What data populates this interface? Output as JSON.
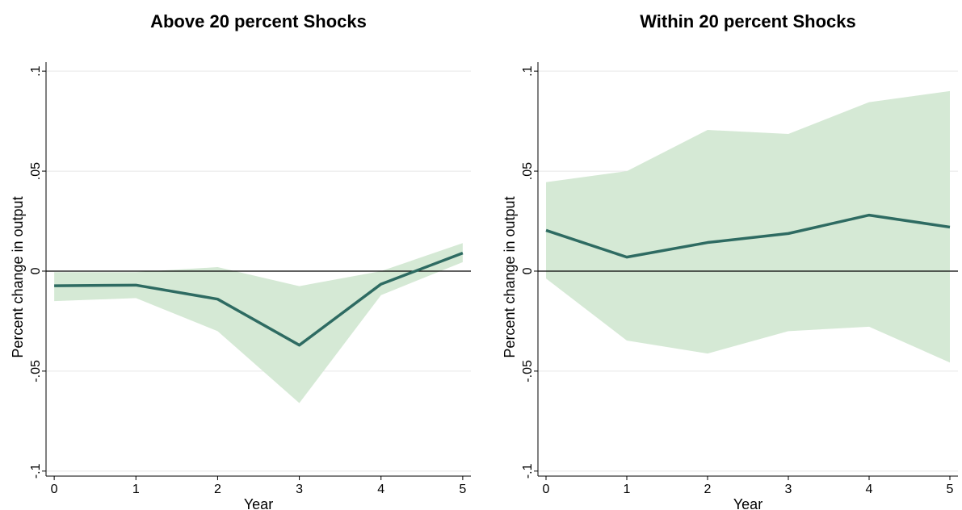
{
  "chart_data": [
    {
      "type": "line",
      "title": "Above 20 percent Shocks",
      "xlabel": "Year",
      "ylabel": "Percent change in output",
      "x": [
        0,
        1,
        2,
        3,
        4,
        5
      ],
      "values": [
        -0.0073,
        -0.007,
        -0.014,
        -0.037,
        -0.0065,
        0.009
      ],
      "upper": [
        -0.0005,
        -0.0005,
        0.002,
        -0.0075,
        0.0,
        0.014
      ],
      "lower": [
        -0.015,
        -0.0135,
        -0.03,
        -0.066,
        -0.012,
        0.0045
      ],
      "color": "#2e6b62",
      "band_color": "#d5e9d5",
      "hline": 0,
      "xlim": [
        -0.1,
        5.1
      ],
      "xticks": [
        0,
        1,
        2,
        3,
        4,
        5
      ],
      "ylim": [
        -0.1025,
        0.1045
      ],
      "yticks": [
        {
          "value": -0.1,
          "label": "-.1"
        },
        {
          "value": -0.05,
          "label": "-.05"
        },
        0,
        {
          "value": 0.05,
          "label": ".05"
        },
        {
          "value": 0.1,
          "label": ".1"
        }
      ],
      "grid": true
    },
    {
      "type": "line",
      "title": "Within 20 percent Shocks",
      "xlabel": "Year",
      "ylabel": "Percent change in output",
      "x": [
        0,
        1,
        2,
        3,
        4,
        5
      ],
      "values": [
        0.0204,
        0.007,
        0.0143,
        0.0188,
        0.028,
        0.022
      ],
      "upper": [
        0.0445,
        0.05,
        0.0706,
        0.0686,
        0.0845,
        0.09
      ],
      "lower": [
        -0.0037,
        -0.0347,
        -0.0412,
        -0.03,
        -0.0278,
        -0.0457
      ],
      "color": "#2e6b62",
      "band_color": "#d5e9d5",
      "hline": 0,
      "xlim": [
        -0.1,
        5.1
      ],
      "xticks": [
        0,
        1,
        2,
        3,
        4,
        5
      ],
      "ylim": [
        -0.1025,
        0.1045
      ],
      "yticks": [
        {
          "value": -0.1,
          "label": "-.1"
        },
        {
          "value": -0.05,
          "label": "-.05"
        },
        0,
        {
          "value": 0.05,
          "label": ".05"
        },
        {
          "value": 0.1,
          "label": ".1"
        }
      ],
      "grid": true
    }
  ]
}
